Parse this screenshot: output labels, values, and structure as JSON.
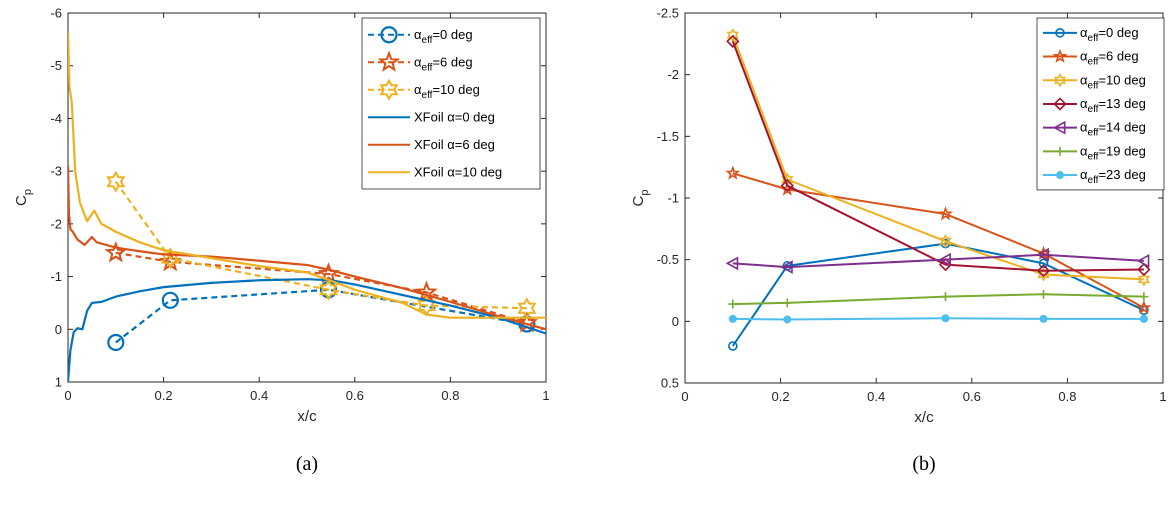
{
  "colors": {
    "blue": "#0072BD",
    "orange": "#D95319",
    "yellow": "#EDB120",
    "darkred": "#A2142F",
    "purple": "#7E2F8E",
    "green": "#77AC30",
    "cyan": "#4DBEEE"
  },
  "chart_data": [
    {
      "type": "line",
      "panel": "(a)",
      "xlabel": "x/c",
      "ylabel": "C",
      "ylabel_sub": "p",
      "xlim": [
        0,
        1
      ],
      "ylim": [
        -6,
        1
      ],
      "y_reversed": true,
      "xticks": [
        "0",
        "0.2",
        "0.4",
        "0.6",
        "0.8",
        "1"
      ],
      "yticks": [
        "-6",
        "-5",
        "-4",
        "-3",
        "-2",
        "-1",
        "0",
        "1"
      ],
      "legend_position": "top-right",
      "series": [
        {
          "name": "α_eff=0 deg",
          "label_pre": "α",
          "label_sub": "eff",
          "label_post": "=0 deg",
          "color": "blue",
          "style": "dashed",
          "marker": "circle",
          "x": [
            0.1,
            0.214,
            0.545,
            0.96
          ],
          "y": [
            0.25,
            -0.55,
            -0.75,
            -0.1
          ]
        },
        {
          "name": "α_eff=6 deg",
          "label_pre": "α",
          "label_sub": "eff",
          "label_post": "=6 deg",
          "color": "orange",
          "style": "dashed",
          "marker": "star",
          "x": [
            0.1,
            0.214,
            0.545,
            0.75,
            0.96
          ],
          "y": [
            -1.45,
            -1.28,
            -1.05,
            -0.7,
            -0.12
          ]
        },
        {
          "name": "α_eff=10 deg",
          "label_pre": "α",
          "label_sub": "eff",
          "label_post": "=10 deg",
          "color": "yellow",
          "style": "dashed",
          "marker": "hexagram",
          "x": [
            0.1,
            0.214,
            0.545,
            0.75,
            0.96
          ],
          "y": [
            -2.8,
            -1.35,
            -0.75,
            -0.45,
            -0.4
          ]
        },
        {
          "name": "XFoil α=0 deg",
          "label_pre": "XFoil α",
          "label_sub": "",
          "label_post": "=0 deg",
          "color": "blue",
          "style": "solid",
          "marker": "none",
          "x": [
            0,
            0.005,
            0.012,
            0.02,
            0.03,
            0.04,
            0.05,
            0.07,
            0.1,
            0.15,
            0.2,
            0.3,
            0.4,
            0.5,
            0.55,
            0.6,
            0.7,
            0.8,
            0.9,
            1.0
          ],
          "y": [
            1.0,
            0.4,
            0.05,
            -0.02,
            0.0,
            -0.35,
            -0.5,
            -0.52,
            -0.62,
            -0.72,
            -0.8,
            -0.88,
            -0.93,
            -0.95,
            -0.93,
            -0.85,
            -0.65,
            -0.45,
            -0.22,
            0.08
          ]
        },
        {
          "name": "XFoil α=6 deg",
          "label_pre": "XFoil α",
          "label_sub": "",
          "label_post": "=6 deg",
          "color": "orange",
          "style": "solid",
          "marker": "none",
          "x": [
            0,
            0.002,
            0.005,
            0.01,
            0.02,
            0.035,
            0.05,
            0.06,
            0.08,
            0.1,
            0.15,
            0.2,
            0.3,
            0.4,
            0.5,
            0.55,
            0.6,
            0.7,
            0.8,
            0.9,
            1.0
          ],
          "y": [
            -3.1,
            -2.2,
            -1.9,
            -1.85,
            -1.7,
            -1.6,
            -1.75,
            -1.65,
            -1.6,
            -1.55,
            -1.48,
            -1.42,
            -1.38,
            -1.3,
            -1.22,
            -1.12,
            -1.0,
            -0.78,
            -0.52,
            -0.25,
            0.0
          ]
        },
        {
          "name": "XFoil α=10 deg",
          "label_pre": "XFoil α",
          "label_sub": "",
          "label_post": "=10 deg",
          "color": "yellow",
          "style": "solid",
          "marker": "none",
          "x": [
            0,
            0.003,
            0.008,
            0.015,
            0.025,
            0.04,
            0.055,
            0.07,
            0.1,
            0.15,
            0.2,
            0.3,
            0.4,
            0.5,
            0.55,
            0.6,
            0.7,
            0.75,
            0.8,
            0.9,
            1.0
          ],
          "y": [
            -5.65,
            -4.6,
            -4.3,
            -3.0,
            -2.4,
            -2.05,
            -2.25,
            -2.0,
            -1.85,
            -1.65,
            -1.5,
            -1.35,
            -1.2,
            -1.08,
            -0.92,
            -0.75,
            -0.5,
            -0.28,
            -0.22,
            -0.22,
            -0.22
          ]
        }
      ]
    },
    {
      "type": "line",
      "panel": "(b)",
      "xlabel": "x/c",
      "ylabel": "C",
      "ylabel_sub": "p",
      "xlim": [
        0,
        1
      ],
      "ylim": [
        -2.5,
        0.5
      ],
      "y_reversed": true,
      "xticks": [
        "0",
        "0.2",
        "0.4",
        "0.6",
        "0.8",
        "1"
      ],
      "yticks": [
        "-2.5",
        "-2",
        "-1.5",
        "-1",
        "-0.5",
        "0",
        "0.5"
      ],
      "legend_position": "top-right",
      "x": [
        0.1,
        0.214,
        0.545,
        0.75,
        0.96
      ],
      "series": [
        {
          "name": "α_eff=0 deg",
          "label_pre": "α",
          "label_sub": "eff",
          "label_post": "=0 deg",
          "color": "blue",
          "marker": "circle",
          "values": [
            0.2,
            -0.45,
            -0.63,
            -0.47,
            -0.09
          ]
        },
        {
          "name": "α_eff=6 deg",
          "label_pre": "α",
          "label_sub": "eff",
          "label_post": "=6 deg",
          "color": "orange",
          "marker": "star",
          "values": [
            -1.2,
            -1.07,
            -0.87,
            -0.55,
            -0.11
          ]
        },
        {
          "name": "α_eff=10 deg",
          "label_pre": "α",
          "label_sub": "eff",
          "label_post": "=10 deg",
          "color": "yellow",
          "marker": "hexagram",
          "values": [
            -2.32,
            -1.15,
            -0.65,
            -0.38,
            -0.34
          ]
        },
        {
          "name": "α_eff=13 deg",
          "label_pre": "α",
          "label_sub": "eff",
          "label_post": "=13 deg",
          "color": "darkred",
          "marker": "diamond",
          "values": [
            -2.27,
            -1.1,
            -0.46,
            -0.41,
            -0.42
          ]
        },
        {
          "name": "α_eff=14 deg",
          "label_pre": "α",
          "label_sub": "eff",
          "label_post": "=14 deg",
          "color": "purple",
          "marker": "triangle-left",
          "values": [
            -0.47,
            -0.44,
            -0.5,
            -0.54,
            -0.49
          ]
        },
        {
          "name": "α_eff=19 deg",
          "label_pre": "α",
          "label_sub": "eff",
          "label_post": "=19 deg",
          "color": "green",
          "marker": "plus",
          "values": [
            -0.14,
            -0.15,
            -0.2,
            -0.22,
            -0.2
          ]
        },
        {
          "name": "α_eff=23 deg",
          "label_pre": "α",
          "label_sub": "eff",
          "label_post": "=23 deg",
          "color": "cyan",
          "marker": "dot",
          "values": [
            -0.02,
            -0.015,
            -0.025,
            -0.02,
            -0.02
          ]
        }
      ]
    }
  ]
}
